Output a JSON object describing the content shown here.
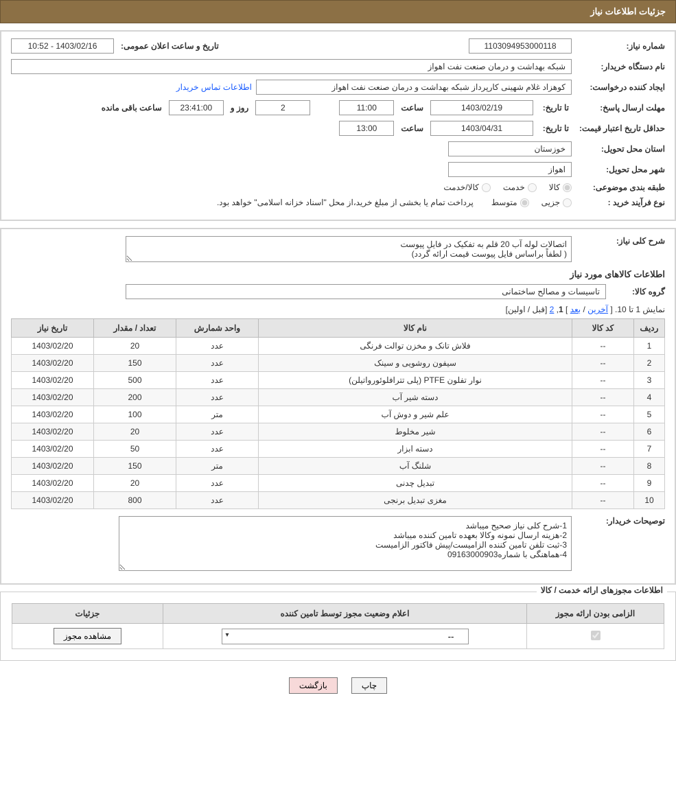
{
  "colors": {
    "header_bg": "#8c7045",
    "header_fg": "#ffffff",
    "panel_border": "#d4d4d4",
    "th_bg": "#e5e5e5",
    "link": "#1a5cff",
    "btn_pink": "#f7d9d9"
  },
  "header": {
    "title": "جزئیات اطلاعات نیاز"
  },
  "details": {
    "need_no_label": "شماره نیاز:",
    "need_no": "1103094953000118",
    "announce_label": "تاریخ و ساعت اعلان عمومی:",
    "announce_val": "1403/02/16 - 10:52",
    "buyer_label": "نام دستگاه خریدار:",
    "buyer_val": "شبکه بهداشت و درمان صنعت نفت اهواز",
    "creator_label": "ایجاد کننده درخواست:",
    "creator_val": "کوهزاد غلام شهینی کارپرداز شبکه بهداشت و درمان صنعت نفت اهواز",
    "contact_link": "اطلاعات تماس خریدار",
    "deadline_label": "مهلت ارسال پاسخ:",
    "until_label": "تا تاریخ:",
    "deadline_date": "1403/02/19",
    "hour_label": "ساعت",
    "deadline_time": "11:00",
    "days_val": "2",
    "days_label": "روز و",
    "remaining_time": "23:41:00",
    "remaining_label": "ساعت باقی مانده",
    "validity_label": "حداقل تاریخ اعتبار قیمت:",
    "validity_date": "1403/04/31",
    "validity_time": "13:00",
    "province_label": "استان محل تحویل:",
    "province_val": "خوزستان",
    "city_label": "شهر محل تحویل:",
    "city_val": "اهواز",
    "category_label": "طبقه بندی موضوعی:",
    "cat_goods": "کالا",
    "cat_service": "خدمت",
    "cat_both": "کالا/خدمت",
    "process_label": "نوع فرآیند خرید :",
    "proc_partial": "جزیی",
    "proc_medium": "متوسط",
    "proc_note": "پرداخت تمام یا بخشی از مبلغ خرید،از محل \"اسناد خزانه اسلامی\" خواهد بود."
  },
  "need": {
    "desc_label": "شرح کلی نیاز:",
    "desc_text": "اتصالات لوله آب     20 قلم   به تفکیک در فایل پیوست\n( لطفاً براساس  فایل پیوست قیمت ارائه گردد)",
    "items_title": "اطلاعات کالاهای مورد نیاز",
    "group_label": "گروه کالا:",
    "group_val": "تاسیسات و مصالح ساختمانی",
    "notes_label": "توصیحات خریدار:",
    "notes_text": "1-شرح کلی نیاز صحیح میباشد\n2-هزینه ارسال نمونه وکالا بعهده تامین کننده میباشد\n3-ثبت تلفن تامین کننده الزامیست/پیش فاکتور الزامیست\n4-هماهنگی با شماره09163000903"
  },
  "pager": {
    "text_prefix": "نمایش 1 تا 10. [ ",
    "last": "آخرین",
    "sep1": " / ",
    "next": "بعد",
    "sep2": " ] ",
    "p1": "1",
    "comma": ", ",
    "p2": "2",
    "suffix": " [قبل / اولین]"
  },
  "table": {
    "cols": [
      "ردیف",
      "کد کالا",
      "نام کالا",
      "واحد شمارش",
      "تعداد / مقدار",
      "تاریخ نیاز"
    ],
    "rows": [
      [
        "1",
        "--",
        "فلاش تانک و مخزن توالت فرنگی",
        "عدد",
        "20",
        "1403/02/20"
      ],
      [
        "2",
        "--",
        "سیفون روشویی و سینک",
        "عدد",
        "150",
        "1403/02/20"
      ],
      [
        "3",
        "--",
        "نوار تفلون PTFE (پلی تترافلوئورواتیلن)",
        "عدد",
        "500",
        "1403/02/20"
      ],
      [
        "4",
        "--",
        "دسته شیر آب",
        "عدد",
        "200",
        "1403/02/20"
      ],
      [
        "5",
        "--",
        "علم شیر و دوش آب",
        "متر",
        "100",
        "1403/02/20"
      ],
      [
        "6",
        "--",
        "شیر مخلوط",
        "عدد",
        "20",
        "1403/02/20"
      ],
      [
        "7",
        "--",
        "دسته ابزار",
        "عدد",
        "50",
        "1403/02/20"
      ],
      [
        "8",
        "--",
        "شلنگ آب",
        "متر",
        "150",
        "1403/02/20"
      ],
      [
        "9",
        "--",
        "تبدیل چدنی",
        "عدد",
        "20",
        "1403/02/20"
      ],
      [
        "10",
        "--",
        "مغزی تبدیل برنجی",
        "عدد",
        "800",
        "1403/02/20"
      ]
    ]
  },
  "permits": {
    "title": "اطلاعات مجوزهای ارائه خدمت / کالا",
    "cols": [
      "الزامی بودن ارائه مجوز",
      "اعلام وضعیت مجوز توسط تامین کننده",
      "جزئیات"
    ],
    "dropdown_val": "--",
    "view_btn": "مشاهده مجوز",
    "mandatory_checked": true
  },
  "footer": {
    "print": "چاپ",
    "back": "بازگشت"
  }
}
